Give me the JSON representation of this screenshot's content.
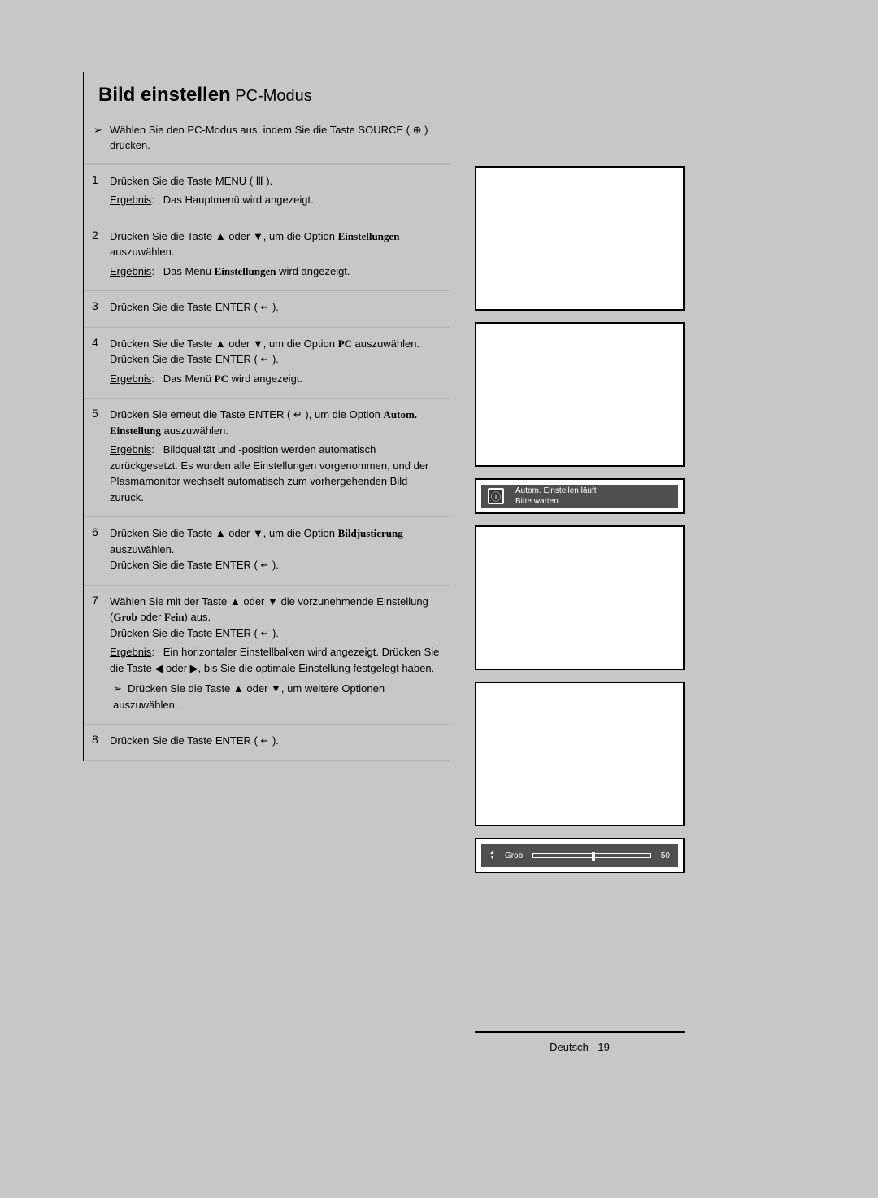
{
  "title_bold": "Bild einstellen",
  "title_normal": " PC-Modus",
  "intro_marker": "➢",
  "intro": "Wählen Sie den PC-Modus aus, indem Sie die Taste SOURCE ( ⊕ ) drücken.",
  "steps": [
    {
      "n": "1",
      "body": "Drücken Sie die Taste MENU ( Ⅲ ).",
      "result": "Das Hauptmenü wird angezeigt."
    },
    {
      "n": "2",
      "body": "Drücken Sie die Taste ▲ oder ▼, um die Option <b>Einstellungen</b> auszuwählen.",
      "result": "Das Menü <b>Einstellungen</b> wird angezeigt."
    },
    {
      "n": "3",
      "body": "Drücken Sie die Taste ENTER ( ↵ )."
    },
    {
      "n": "4",
      "body": "Drücken Sie die Taste ▲ oder ▼, um die Option <b>PC</b> auszuwählen. Drücken Sie die Taste ENTER ( ↵ ).",
      "result": "Das Menü <b>PC</b> wird angezeigt."
    },
    {
      "n": "5",
      "body": "Drücken Sie erneut die Taste ENTER ( ↵ ), um die Option <b>Autom. Einstellung</b> auszuwählen.",
      "result": "Bildqualität und -position werden automatisch zurückgesetzt. Es wurden alle Einstellungen vorgenommen, und der Plasmamonitor wechselt automatisch zum vorhergehenden Bild zurück."
    },
    {
      "n": "6",
      "body": "Drücken Sie die Taste ▲ oder ▼, um die Option <b>Bildjustierung</b> auszuwählen.<br>Drücken Sie die Taste ENTER ( ↵ )."
    },
    {
      "n": "7",
      "body": "Wählen Sie mit der Taste ▲ oder ▼ die vorzunehmende Einstellung (<b>Grob</b> oder <b>Fein</b>) aus.<br>Drücken Sie die Taste ENTER ( ↵ ).",
      "result": "Ein horizontaler Einstellbalken wird angezeigt. Drücken Sie die Taste ◀ oder ▶, bis Sie die optimale Einstellung festgelegt haben.",
      "note": "Drücken Sie die Taste ▲ oder ▼, um weitere Optionen auszuwählen."
    },
    {
      "n": "8",
      "body": "Drücken Sie die Taste ENTER ( ↵ )."
    }
  ],
  "toast": {
    "icon": "ⓘ",
    "line1": "Autom. Einstellen läuft",
    "line2": "Bitte warten"
  },
  "slider": {
    "label": "Grob",
    "value": "50",
    "position_percent": 50
  },
  "footer": "Deutsch - 19",
  "colors": {
    "page_bg": "#c7c7c7",
    "toast_bg": "#4f4f4f",
    "toast_fg": "#ffffff",
    "divider": "#b5b5b5"
  }
}
